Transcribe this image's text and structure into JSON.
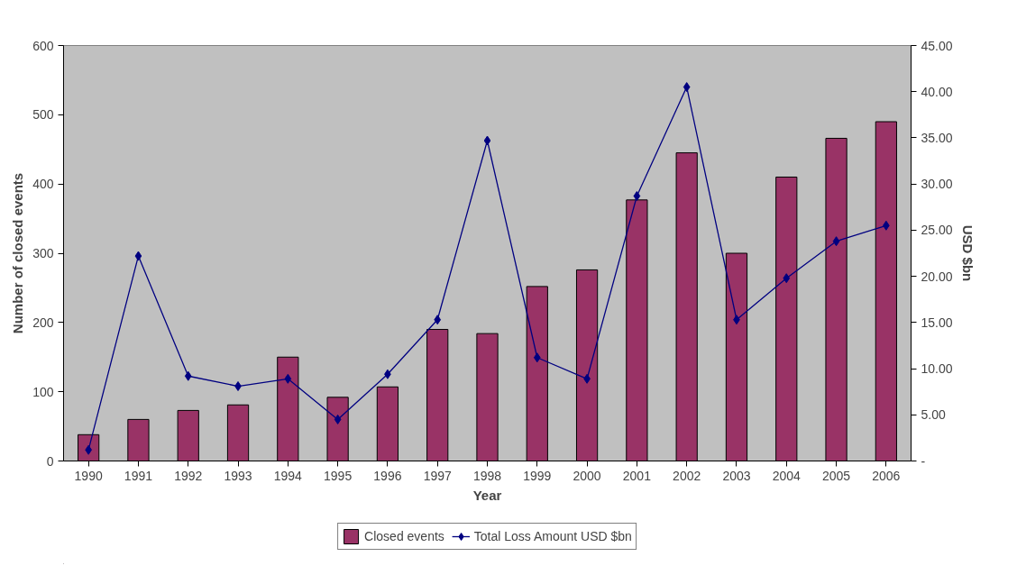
{
  "chart_data": {
    "type": "bar",
    "xlabel": "Year",
    "ylabel": "Number of closed events",
    "y2label": "USD $bn",
    "categories": [
      "1990",
      "1991",
      "1992",
      "1993",
      "1994",
      "1995",
      "1996",
      "1997",
      "1998",
      "1999",
      "2000",
      "2001",
      "2002",
      "2003",
      "2004",
      "2005",
      "2006"
    ],
    "series": [
      {
        "name": "Closed events",
        "color": "#993366",
        "values": [
          38,
          60,
          73,
          81,
          150,
          92,
          107,
          190,
          184,
          252,
          276,
          377,
          445,
          300,
          410,
          466,
          490
        ]
      },
      {
        "name": "Total Loss Amount USD $bn",
        "type": "line",
        "axis": "y2",
        "color": "#000080",
        "marker": "diamond",
        "values": [
          1.2,
          22.2,
          9.2,
          8.1,
          8.9,
          4.5,
          9.4,
          15.3,
          34.7,
          11.2,
          8.9,
          28.7,
          40.5,
          15.3,
          19.8,
          23.8,
          25.5
        ]
      }
    ],
    "ylim": [
      0,
      600
    ],
    "yticks": [
      0,
      100,
      200,
      300,
      400,
      500,
      600
    ],
    "y2lim": [
      0,
      45
    ],
    "y2ticks": [
      {
        "value": 0,
        "label": "-"
      },
      {
        "value": 5,
        "label": "5.00"
      },
      {
        "value": 10,
        "label": "10.00"
      },
      {
        "value": 15,
        "label": "15.00"
      },
      {
        "value": 20,
        "label": "20.00"
      },
      {
        "value": 25,
        "label": "25.00"
      },
      {
        "value": 30,
        "label": "30.00"
      },
      {
        "value": 35,
        "label": "35.00"
      },
      {
        "value": 40,
        "label": "40.00"
      },
      {
        "value": 45,
        "label": "45.00"
      }
    ],
    "grid": false,
    "legend": "bottom"
  }
}
